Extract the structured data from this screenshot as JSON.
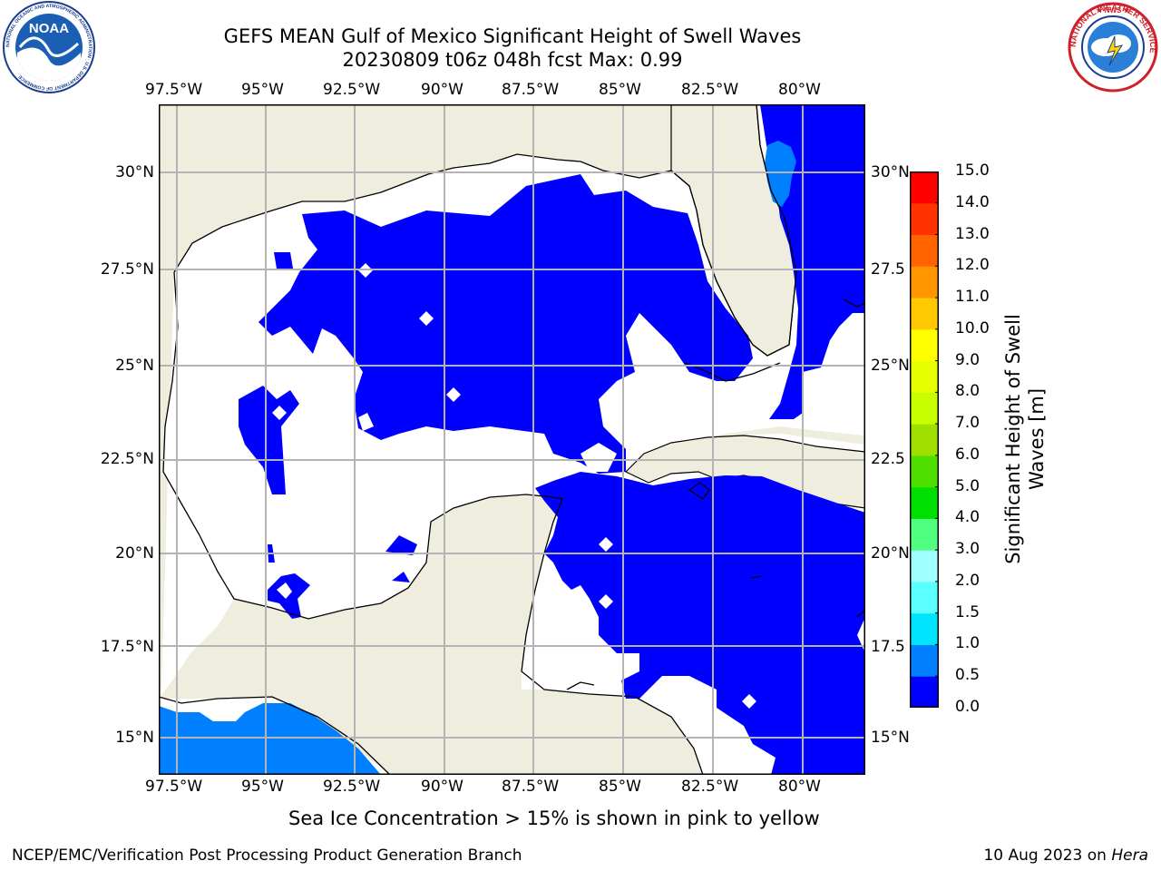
{
  "header": {
    "title_line1": "GEFS MEAN Gulf of Mexico Significant Height of Swell Waves",
    "title_line2": "20230809 t06z 048h fcst   Max: 0.99"
  },
  "logos": {
    "left": {
      "text": "NOAA",
      "ring_text": "NATIONAL OCEANIC AND ATMOSPHERIC ADMINISTRATION · U.S. DEPARTMENT OF COMMERCE"
    },
    "right": {
      "ring_text": "NATIONAL WEATHER SERVICE"
    }
  },
  "map": {
    "lon_labels": [
      "97.5°W",
      "95°W",
      "92.5°W",
      "90°W",
      "87.5°W",
      "85°W",
      "82.5°W",
      "80°W"
    ],
    "lat_labels_left": [
      "30°N",
      "27.5°N",
      "25°N",
      "22.5°N",
      "20°N",
      "17.5°N",
      "15°N"
    ],
    "lat_labels_right": [
      "30°N",
      "27.5",
      "25°N",
      "22.5",
      "20°N",
      "17.5",
      "15°N"
    ],
    "colors": {
      "land": "#efedde",
      "ocean_low": "#0000ff",
      "ocean_mid": "#0080ff",
      "grid": "#b4b4b4"
    }
  },
  "colorbar": {
    "label_line1": "Significant Height of Swell",
    "label_line2": "Waves [m]",
    "ticks": [
      "15.0",
      "14.0",
      "13.0",
      "12.0",
      "11.0",
      "10.0",
      "9.0",
      "8.0",
      "7.0",
      "6.0",
      "5.0",
      "4.0",
      "3.0",
      "2.0",
      "1.5",
      "1.0",
      "0.5",
      "0.0"
    ],
    "colors": [
      "#0000ff",
      "#0080ff",
      "#00e4ff",
      "#5affff",
      "#a0ffff",
      "#50ff80",
      "#00e000",
      "#50e000",
      "#a0e000",
      "#c8ff00",
      "#e6ff00",
      "#ffff00",
      "#ffc800",
      "#ff9600",
      "#ff6400",
      "#ff3200",
      "#ff0000"
    ]
  },
  "footer": {
    "sea_ice_note": "Sea Ice Concentration > 15% is shown in pink to yellow",
    "left": "NCEP/EMC/Verification Post Processing Product Generation Branch",
    "right_prefix": "10 Aug 2023 on ",
    "right_host": "Hera"
  }
}
